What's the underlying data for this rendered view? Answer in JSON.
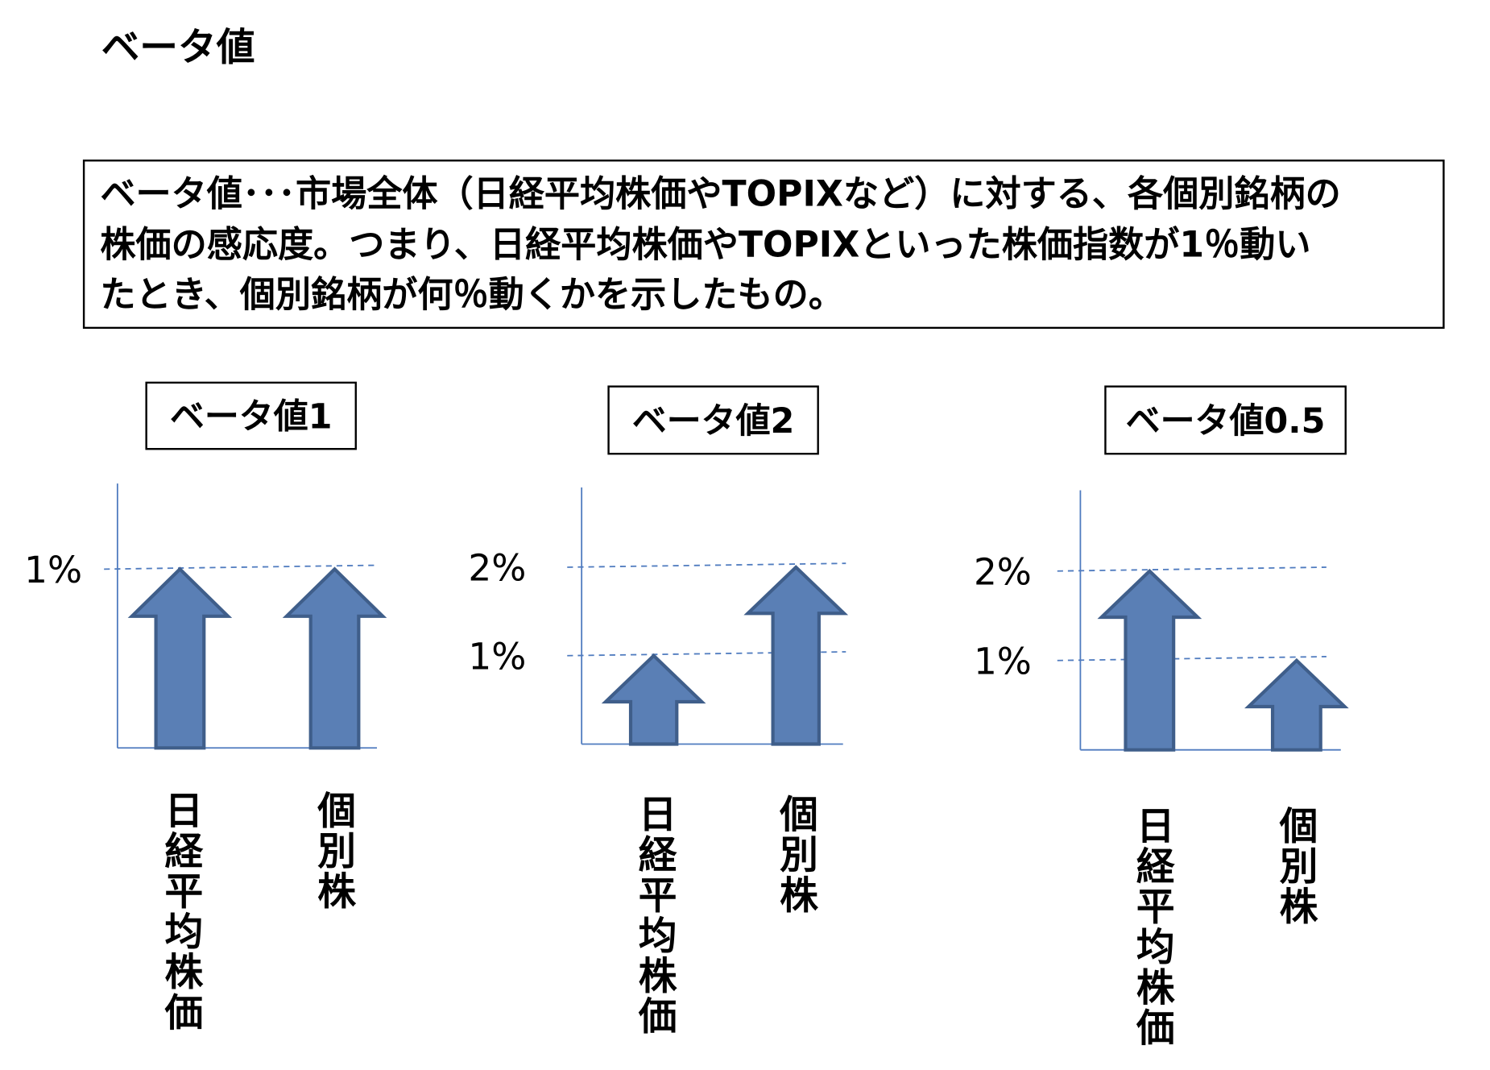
{
  "title": "ベータ値",
  "definition": {
    "lines": [
      "ベータ値･･･市場全体（日経平均株価やTOPIXなど）に対する、各個別銘柄の",
      "株価の感応度。つまり、日経平均株価やTOPIXといった株価指数が1％動い",
      "たとき、個別銘柄が何％動くかを示したもの。"
    ]
  },
  "colors": {
    "arrow_fill": "#5a7fb5",
    "arrow_stroke": "#3f5e8a",
    "axis": "#4f7bbf",
    "dash": "#4f7bbf"
  },
  "chart_data": [
    {
      "type": "bar",
      "title": "ベータ値1",
      "tick_labels": [
        "1%"
      ],
      "ticks": [
        1
      ],
      "categories": [
        "日経平均株価",
        "個別株"
      ],
      "values": [
        1,
        1
      ],
      "ylim": [
        0,
        1
      ]
    },
    {
      "type": "bar",
      "title": "ベータ値2",
      "tick_labels": [
        "2%",
        "1%"
      ],
      "ticks": [
        2,
        1
      ],
      "categories": [
        "日経平均株価",
        "個別株"
      ],
      "values": [
        1,
        2
      ],
      "ylim": [
        0,
        2
      ]
    },
    {
      "type": "bar",
      "title": "ベータ値0.5",
      "tick_labels": [
        "2%",
        "1%"
      ],
      "ticks": [
        2,
        1
      ],
      "categories": [
        "日経平均株価",
        "個別株"
      ],
      "values": [
        2,
        1
      ],
      "ylim": [
        0,
        2
      ]
    }
  ]
}
